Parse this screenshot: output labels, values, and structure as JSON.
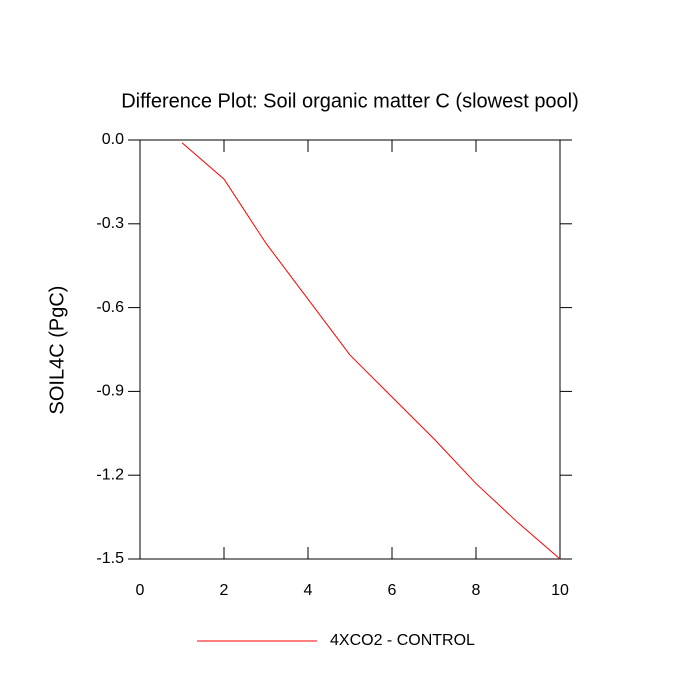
{
  "chart_data": {
    "type": "line",
    "title": "Difference Plot: Soil organic matter C (slowest pool)",
    "y_label": "SOIL4C  (PgC)",
    "x": [
      1,
      2,
      3,
      4,
      5,
      6,
      7,
      8,
      9,
      10
    ],
    "series": [
      {
        "name": "4XCO2 - CONTROL",
        "color": "#ff0000",
        "values": [
          -0.01,
          -0.14,
          -0.37,
          -0.57,
          -0.77,
          -0.92,
          -1.07,
          -1.23,
          -1.37,
          -1.5
        ]
      }
    ],
    "xlim": [
      0,
      10
    ],
    "xticks": [
      0,
      2,
      4,
      6,
      8,
      10
    ],
    "ylim": [
      -1.5,
      0
    ],
    "yticks": [
      -1.5,
      -1.2,
      -0.9,
      -0.6,
      -0.3,
      {
        "value": 0,
        "label": "0.0"
      }
    ],
    "grid": false
  }
}
